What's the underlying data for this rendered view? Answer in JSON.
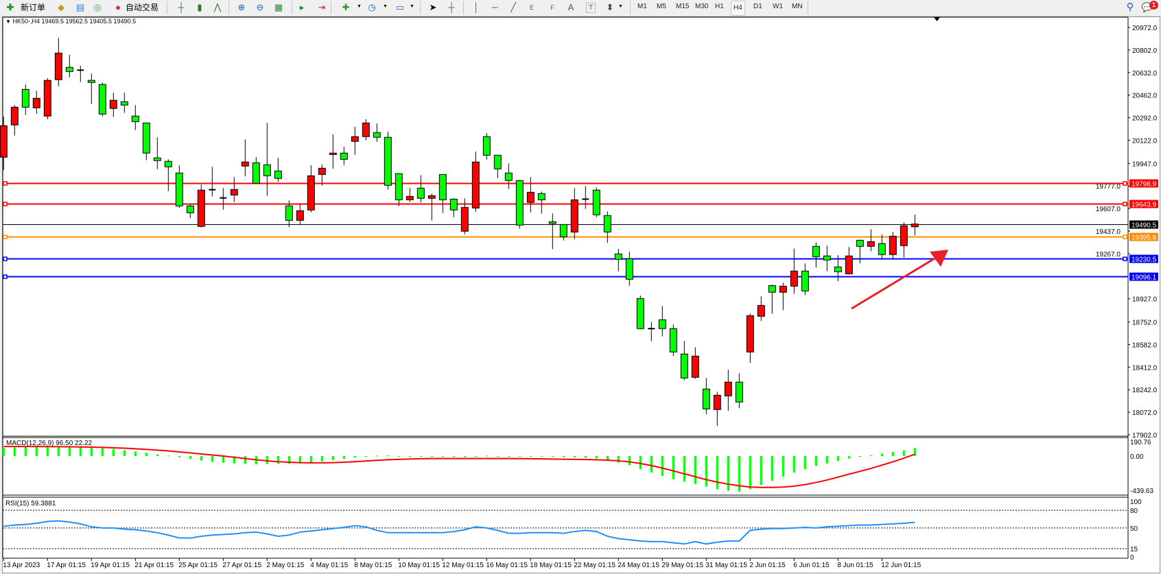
{
  "toolbar": {
    "new_order_label": "新订单",
    "auto_trade_label": "自动交易",
    "timeframes": [
      "M1",
      "M5",
      "M15",
      "M30",
      "H1",
      "H4",
      "D1",
      "W1",
      "MN"
    ],
    "active_timeframe": "H4",
    "line_tool_labels": {
      "channel": "E",
      "fibo": "F",
      "text": "A",
      "textlabel": "T"
    },
    "notification_count": "1"
  },
  "chart": {
    "header": "HK50-,H4  19469.5 19562.5 19405.5 19490.5",
    "price_axis": [
      "20972.0",
      "20802.0",
      "20632.0",
      "20462.0",
      "20292.0",
      "20122.0",
      "19947.0",
      "19777.0",
      "19607.0",
      "19437.0",
      "19267.0",
      "18927.0",
      "18752.0",
      "18582.0",
      "18412.0",
      "18242.0",
      "18072.0",
      "17902.0"
    ],
    "price_range": [
      17902,
      20972
    ],
    "levels": [
      {
        "price": 19798.9,
        "label": "19798.9",
        "color": "#ff0000",
        "handle_right": true
      },
      {
        "price": 19643.9,
        "label": "19643.9",
        "color": "#ff0000",
        "handle_right": true
      },
      {
        "price": 19490.5,
        "label": "19490.5",
        "color": "#000000",
        "handle_right": false,
        "current": true
      },
      {
        "price": 19395.8,
        "label": "19395.8",
        "color": "#ff8c00",
        "handle_right": true
      },
      {
        "price": 19230.5,
        "label": "19230.5",
        "color": "#0000ff",
        "handle_right": true
      },
      {
        "price": 19096.1,
        "label": "19096.1",
        "color": "#0000ff",
        "handle_right": false
      }
    ],
    "bull_color": "#ff0000",
    "bear_color": "#00ff00",
    "candles": [
      [
        19994,
        20300,
        19896,
        20231
      ],
      [
        20237,
        20387,
        20157,
        20371
      ],
      [
        20505,
        20542,
        20312,
        20371
      ],
      [
        20366,
        20495,
        20322,
        20438
      ],
      [
        20304,
        20590,
        20281,
        20573
      ],
      [
        20578,
        20894,
        20529,
        20779
      ],
      [
        20671,
        20765,
        20596,
        20640
      ],
      [
        20640,
        20683,
        20560,
        20650
      ],
      [
        20573,
        20624,
        20395,
        20557
      ],
      [
        20542,
        20557,
        20302,
        20319
      ],
      [
        20361,
        20480,
        20297,
        20423
      ],
      [
        20412,
        20480,
        20328,
        20387
      ],
      [
        20304,
        20387,
        20198,
        20262
      ],
      [
        20252,
        20252,
        19971,
        20025
      ],
      [
        19989,
        20144,
        19904,
        19968
      ],
      [
        19963,
        19978,
        19738,
        19921
      ],
      [
        19875,
        19932,
        19611,
        19627
      ],
      [
        19627,
        19639,
        19534,
        19575
      ],
      [
        19472,
        19787,
        19465,
        19746
      ],
      [
        19749,
        19921,
        19697,
        19746
      ],
      [
        19687,
        19761,
        19599,
        19685
      ],
      [
        19709,
        19844,
        19656,
        19751
      ],
      [
        19927,
        20128,
        19849,
        19958
      ],
      [
        19952,
        19994,
        19794,
        19797
      ],
      [
        19937,
        20252,
        19704,
        19854
      ],
      [
        19890,
        19989,
        19808,
        19834
      ],
      [
        19627,
        19668,
        19467,
        19518
      ],
      [
        19518,
        19640,
        19487,
        19591
      ],
      [
        19596,
        19933,
        19578,
        19854
      ],
      [
        19864,
        19938,
        19780,
        19911
      ],
      [
        20014,
        20166,
        19907,
        20025
      ],
      [
        20025,
        20073,
        19935,
        19978
      ],
      [
        20113,
        20223,
        20011,
        20149
      ],
      [
        20149,
        20280,
        20121,
        20252
      ],
      [
        20180,
        20248,
        20110,
        20144
      ],
      [
        20144,
        20186,
        19749,
        19782
      ],
      [
        19870,
        19870,
        19625,
        19673
      ],
      [
        19673,
        19763,
        19656,
        19699
      ],
      [
        19761,
        19859,
        19653,
        19684
      ],
      [
        19684,
        19720,
        19516,
        19704
      ],
      [
        19864,
        19864,
        19573,
        19673
      ],
      [
        19678,
        19684,
        19542,
        19596
      ],
      [
        19436,
        19684,
        19413,
        19616
      ],
      [
        19611,
        20037,
        19583,
        19958
      ],
      [
        20149,
        20176,
        19976,
        20009
      ],
      [
        20009,
        20009,
        19836,
        19906
      ],
      [
        19875,
        19947,
        19754,
        19818
      ],
      [
        19818,
        19823,
        19456,
        19482
      ],
      [
        19653,
        19844,
        19578,
        19730
      ],
      [
        19720,
        19735,
        19568,
        19673
      ],
      [
        19508,
        19570,
        19301,
        19494
      ],
      [
        19487,
        19487,
        19366,
        19394
      ],
      [
        19430,
        19761,
        19377,
        19673
      ],
      [
        19678,
        19777,
        19604,
        19673
      ],
      [
        19746,
        19766,
        19542,
        19560
      ],
      [
        19554,
        19585,
        19348,
        19430
      ],
      [
        19265,
        19303,
        19134,
        19224
      ],
      [
        19229,
        19282,
        19025,
        19074
      ],
      [
        18929,
        18951,
        18697,
        18702
      ],
      [
        18702,
        18753,
        18607,
        18698
      ],
      [
        18769,
        18872,
        18643,
        18702
      ],
      [
        18702,
        18733,
        18495,
        18526
      ],
      [
        18511,
        18609,
        18314,
        18330
      ],
      [
        18335,
        18562,
        18324,
        18495
      ],
      [
        18247,
        18330,
        18056,
        18097
      ],
      [
        18092,
        18226,
        17968,
        18200
      ],
      [
        18195,
        18392,
        18082,
        18299
      ],
      [
        18299,
        18366,
        18102,
        18149
      ],
      [
        18526,
        18815,
        18443,
        18800
      ],
      [
        18795,
        18945,
        18759,
        18877
      ],
      [
        19027,
        19032,
        18815,
        18976
      ],
      [
        18976,
        19048,
        18841,
        19022
      ],
      [
        19022,
        19306,
        18965,
        19136
      ],
      [
        19136,
        19193,
        18955,
        18986
      ],
      [
        19322,
        19353,
        19162,
        19244
      ],
      [
        19250,
        19327,
        19136,
        19219
      ],
      [
        19167,
        19255,
        19058,
        19131
      ],
      [
        19115,
        19317,
        19110,
        19250
      ],
      [
        19368,
        19373,
        19193,
        19322
      ],
      [
        19322,
        19451,
        19286,
        19358
      ],
      [
        19343,
        19410,
        19229,
        19260
      ],
      [
        19260,
        19430,
        19224,
        19399
      ],
      [
        19327,
        19503,
        19239,
        19477
      ],
      [
        19469.5,
        19562.5,
        19405.5,
        19490.5
      ]
    ],
    "time_labels": [
      "13 Apr 2023",
      "17 Apr 01:15",
      "19 Apr 01:15",
      "21 Apr 01:15",
      "25 Apr 01:15",
      "27 Apr 01:15",
      "2 May 01:15",
      "4 May 01:15",
      "8 May 01:15",
      "10 May 01:15",
      "12 May 01:15",
      "16 May 01:15",
      "18 May 01:15",
      "22 May 01:15",
      "24 May 01:15",
      "29 May 01:15",
      "31 May 01:15",
      "2 Jun 01:15",
      "6 Jun 01:15",
      "8 Jun 01:15",
      "12 Jun 01:15"
    ],
    "arrow_color": "#e8202a"
  },
  "macd": {
    "label": "MACD(12,26,9) 96.50 22.22",
    "axis": [
      "190.76",
      "0.00",
      "-439.63"
    ],
    "range": [
      -439.63,
      190.76
    ],
    "hist_color": "#00ff00",
    "signal_color": "#ff0000",
    "main": [
      100,
      105,
      110,
      112,
      115,
      118,
      115,
      110,
      105,
      95,
      85,
      70,
      55,
      40,
      20,
      5,
      -15,
      -35,
      -55,
      -70,
      -80,
      -90,
      -95,
      -100,
      -98,
      -95,
      -95,
      -90,
      -80,
      -65,
      -50,
      -35,
      -20,
      -10,
      5,
      8,
      -5,
      -10,
      -8,
      -5,
      -5,
      -10,
      -12,
      0,
      5,
      0,
      -3,
      -5,
      -5,
      -8,
      -10,
      -12,
      -15,
      -20,
      -30,
      -45,
      -80,
      -110,
      -160,
      -200,
      -240,
      -280,
      -310,
      -340,
      -370,
      -400,
      -420,
      -430,
      -400,
      -350,
      -300,
      -250,
      -200,
      -160,
      -120,
      -90,
      -60,
      -30,
      -10,
      10,
      30,
      50,
      70,
      96.5
    ],
    "signal": [
      115,
      115,
      115,
      115,
      114,
      113,
      112,
      110,
      108,
      105,
      100,
      95,
      88,
      80,
      72,
      62,
      50,
      38,
      25,
      12,
      0,
      -15,
      -30,
      -45,
      -58,
      -68,
      -75,
      -80,
      -82,
      -82,
      -80,
      -75,
      -68,
      -60,
      -52,
      -45,
      -40,
      -35,
      -32,
      -30,
      -30,
      -30,
      -30,
      -30,
      -30,
      -30,
      -30,
      -31,
      -32,
      -34,
      -36,
      -38,
      -40,
      -43,
      -46,
      -50,
      -58,
      -70,
      -90,
      -115,
      -145,
      -180,
      -215,
      -250,
      -285,
      -315,
      -340,
      -360,
      -375,
      -380,
      -380,
      -375,
      -365,
      -345,
      -320,
      -290,
      -255,
      -220,
      -185,
      -150,
      -110,
      -70,
      -25,
      22.22
    ]
  },
  "rsi": {
    "label": "RSI(15) 59.3881",
    "axis": [
      "100",
      "80",
      "50",
      "15",
      "0"
    ],
    "levels": [
      80,
      50,
      15
    ],
    "color": "#1e90ff",
    "values": [
      53,
      55,
      56,
      58,
      61,
      62,
      60,
      57,
      52,
      50,
      50,
      48,
      47,
      45,
      42,
      38,
      33,
      33,
      36,
      38,
      39,
      40,
      42,
      43,
      40,
      36,
      38,
      43,
      45,
      47,
      49,
      51,
      54,
      52,
      46,
      42,
      42,
      42,
      42,
      42,
      42,
      44,
      47,
      52,
      50,
      46,
      41,
      41,
      42,
      42,
      42,
      41,
      44,
      46,
      44,
      36,
      32,
      30,
      28,
      27,
      27,
      25,
      23,
      27,
      23,
      26,
      28,
      28,
      46,
      48,
      49,
      49,
      50,
      51,
      50,
      52,
      53,
      54,
      55,
      55,
      56,
      57,
      58,
      59.3881
    ]
  }
}
